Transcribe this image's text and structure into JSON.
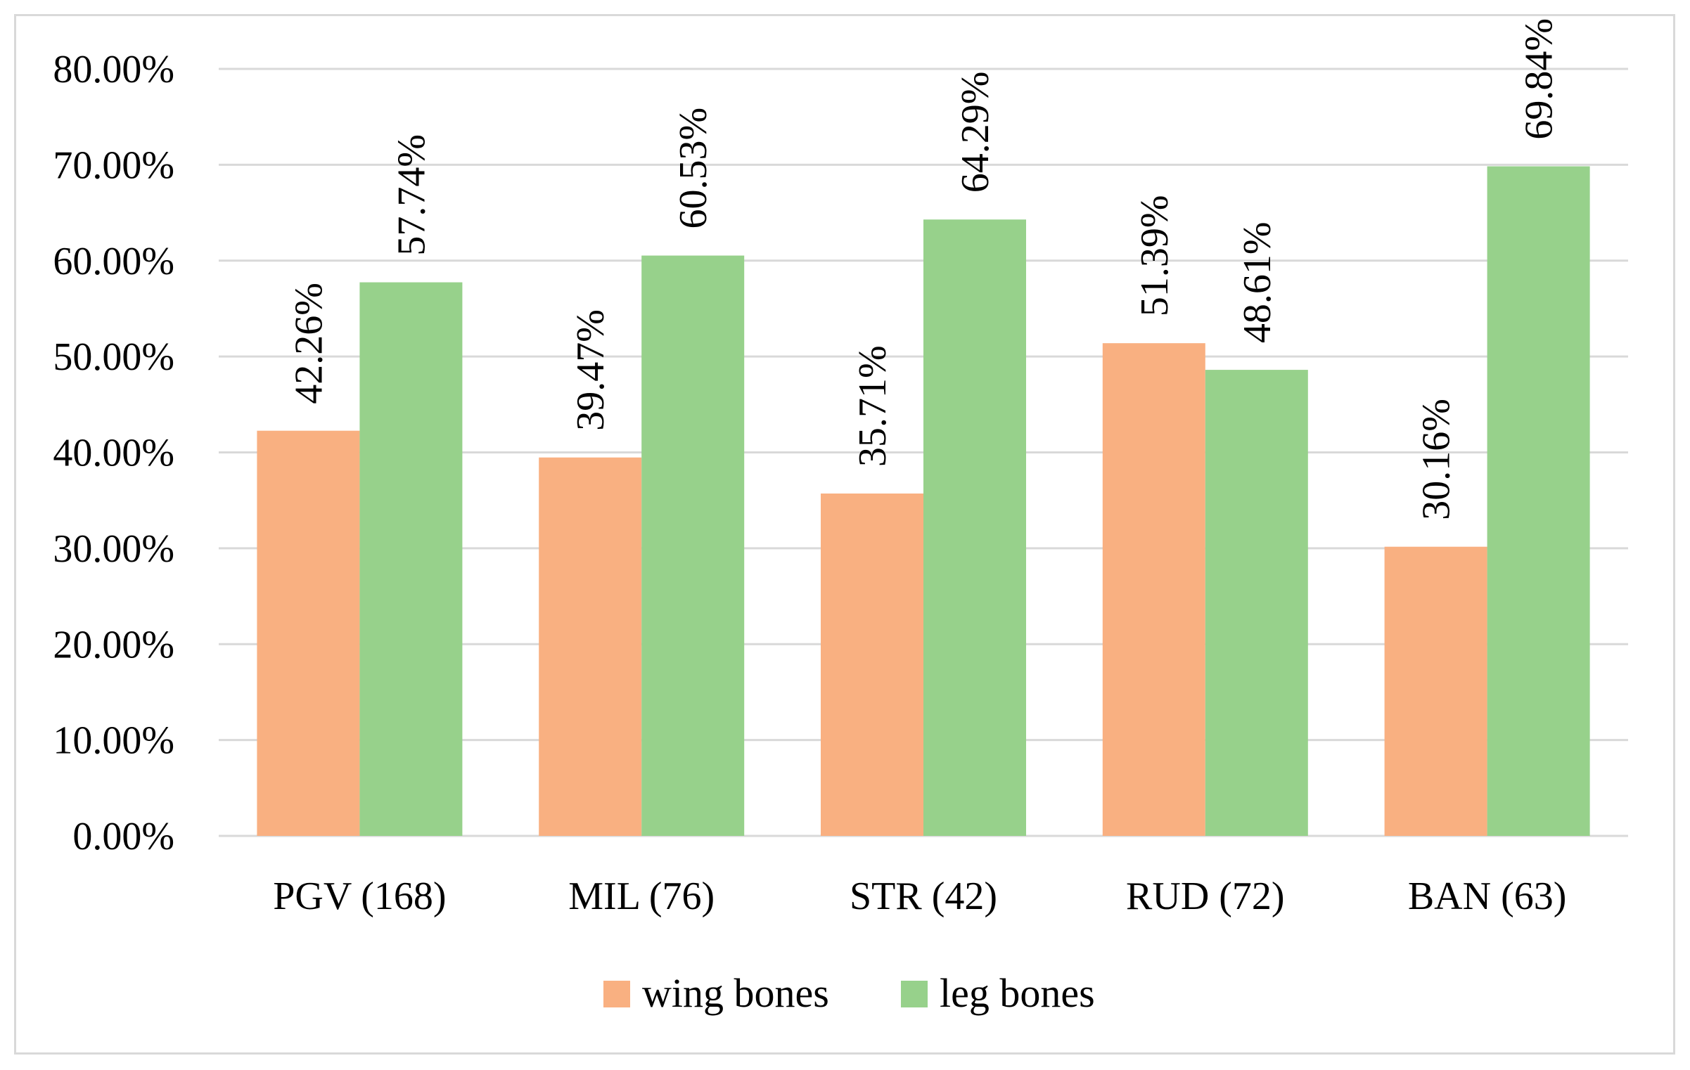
{
  "chart_data": {
    "type": "bar",
    "title": "",
    "xlabel": "",
    "ylabel": "",
    "ylim": [
      0,
      80
    ],
    "y_ticks": [
      "0.00%",
      "10.00%",
      "20.00%",
      "30.00%",
      "40.00%",
      "50.00%",
      "60.00%",
      "70.00%",
      "80.00%"
    ],
    "categories": [
      "PGV (168)",
      "MIL (76)",
      "STR (42)",
      "RUD (72)",
      "BAN (63)"
    ],
    "series": [
      {
        "name": "wing bones",
        "color": "#f9b081",
        "values": [
          42.26,
          39.47,
          35.71,
          51.39,
          30.16
        ],
        "labels": [
          "42.26%",
          "39.47%",
          "35.71%",
          "51.39%",
          "30.16%"
        ]
      },
      {
        "name": "leg bones",
        "color": "#97d18b",
        "values": [
          57.74,
          60.53,
          64.29,
          48.61,
          69.84
        ],
        "labels": [
          "57.74%",
          "60.53%",
          "64.29%",
          "48.61%",
          "69.84%"
        ]
      }
    ],
    "grid": true,
    "legend_position": "bottom"
  }
}
